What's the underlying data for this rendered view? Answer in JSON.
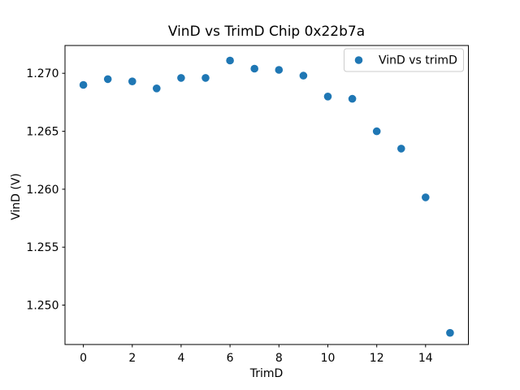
{
  "chart_data": {
    "type": "scatter",
    "title": "VinD vs TrimD Chip 0x22b7a",
    "xlabel": "TrimD",
    "ylabel": "VinD (V)",
    "legend": {
      "label": "VinD vs trimD",
      "position": "upper right"
    },
    "series": [
      {
        "name": "VinD vs trimD",
        "color": "#1f77b4",
        "marker": "circle",
        "x": [
          0,
          1,
          2,
          3,
          4,
          5,
          6,
          7,
          8,
          9,
          10,
          11,
          12,
          13,
          14,
          15
        ],
        "y": [
          1.269,
          1.2695,
          1.2693,
          1.2687,
          1.2696,
          1.2696,
          1.2711,
          1.2704,
          1.2703,
          1.2698,
          1.268,
          1.2678,
          1.265,
          1.2635,
          1.2593,
          1.2476
        ]
      }
    ],
    "xlim": [
      -0.75,
      15.75
    ],
    "ylim": [
      1.2466,
      1.2724
    ],
    "xticks": {
      "values": [
        0,
        2,
        4,
        6,
        8,
        10,
        12,
        14
      ],
      "labels": [
        "0",
        "2",
        "4",
        "6",
        "8",
        "10",
        "12",
        "14"
      ]
    },
    "yticks": {
      "values": [
        1.25,
        1.255,
        1.26,
        1.265,
        1.27
      ],
      "labels": [
        "1.250",
        "1.255",
        "1.260",
        "1.265",
        "1.270"
      ]
    },
    "grid": false,
    "background_color": "#ffffff",
    "axis_color": "#000000"
  }
}
